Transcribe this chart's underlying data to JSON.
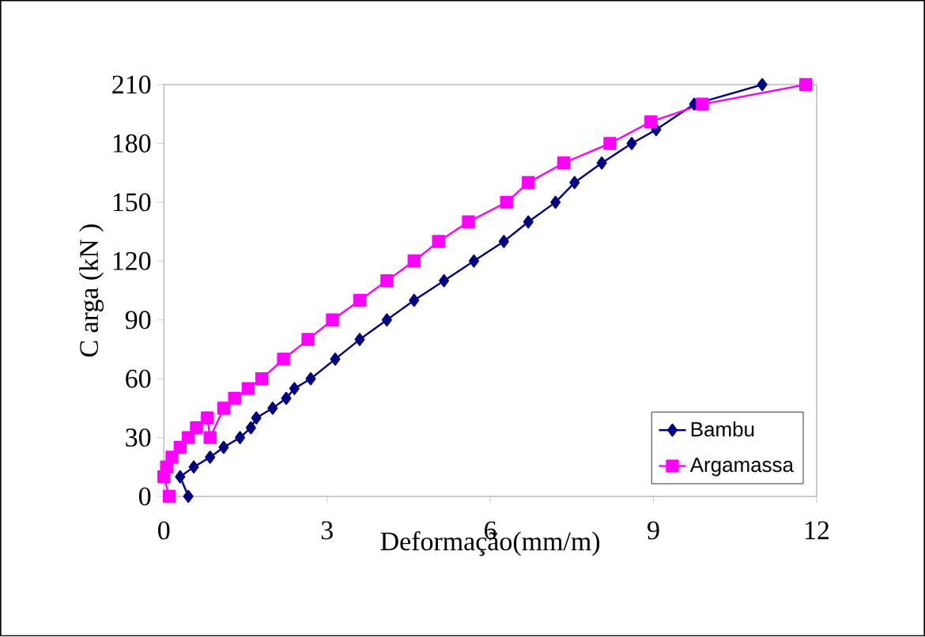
{
  "chart_data": {
    "type": "line",
    "xlabel": "Deformação(mm/m)",
    "ylabel": "C arga (kN )",
    "xlim": [
      0,
      12
    ],
    "ylim": [
      0,
      210
    ],
    "xticks": [
      0,
      3,
      6,
      9,
      12
    ],
    "yticks": [
      0,
      30,
      60,
      90,
      120,
      150,
      180,
      210
    ],
    "legend": "bottom right",
    "grid": false,
    "series": [
      {
        "name": "Bambu",
        "color": "#000080",
        "marker": "diamond",
        "x": [
          0.45,
          0.3,
          0.55,
          0.85,
          1.1,
          1.4,
          1.6,
          1.7,
          2.0,
          2.25,
          2.4,
          2.7,
          3.15,
          3.6,
          4.1,
          4.6,
          5.15,
          5.7,
          6.25,
          6.7,
          7.2,
          7.55,
          8.05,
          8.6,
          9.05,
          9.75,
          11.0
        ],
        "values": [
          0,
          10,
          15,
          20,
          25,
          30,
          35,
          40,
          45,
          50,
          55,
          60,
          70,
          80,
          90,
          100,
          110,
          120,
          130,
          140,
          150,
          160,
          170,
          180,
          187,
          200,
          210
        ]
      },
      {
        "name": "Argamassa",
        "color": "#ff00ff",
        "marker": "square",
        "x": [
          0.1,
          0.0,
          0.05,
          0.15,
          0.3,
          0.45,
          0.6,
          0.8,
          0.85,
          1.1,
          1.3,
          1.55,
          1.8,
          2.2,
          2.65,
          3.1,
          3.6,
          4.1,
          4.6,
          5.05,
          5.6,
          6.3,
          6.7,
          7.35,
          8.2,
          8.95,
          9.9,
          11.8
        ],
        "values": [
          0,
          10,
          15,
          20,
          25,
          30,
          35,
          40,
          30,
          45,
          50,
          55,
          60,
          70,
          80,
          90,
          100,
          110,
          120,
          130,
          140,
          150,
          160,
          170,
          180,
          191,
          200,
          210
        ]
      }
    ]
  }
}
